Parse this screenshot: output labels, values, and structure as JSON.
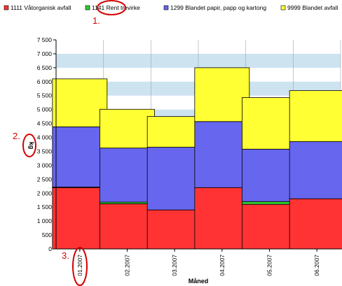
{
  "chart_data": {
    "type": "bar",
    "stacked": true,
    "categories": [
      "01.2007",
      "02.2007",
      "03.2007",
      "04.2007",
      "05.2007",
      "06.2007"
    ],
    "series": [
      {
        "name": "1111 Våtorganisk avfall",
        "color": "#ff3333",
        "values": [
          2200,
          1620,
          1400,
          2200,
          1600,
          1800
        ]
      },
      {
        "name": "1141 Rent trevirke",
        "color": "#33cc33",
        "values": [
          20,
          60,
          0,
          0,
          100,
          0
        ]
      },
      {
        "name": "1299 Blandet papir, papp og kartong",
        "color": "#6666ee",
        "values": [
          2160,
          1940,
          2250,
          2370,
          1880,
          2050
        ]
      },
      {
        "name": "9999 Blandet avfall",
        "color": "#ffff33",
        "values": [
          1720,
          1390,
          1100,
          1930,
          1850,
          1830
        ]
      }
    ],
    "xlabel": "Måned",
    "ylabel": "kg",
    "ylim": [
      0,
      7500
    ],
    "yticks": [
      "0",
      "500",
      "1 000",
      "1 500",
      "2 000",
      "2 500",
      "3 000",
      "3 500",
      "4 000",
      "4 500",
      "5 000",
      "5 500",
      "6 000",
      "6 500",
      "7 000",
      "7 500"
    ],
    "background_bands": [
      "#ffffff",
      "#cde3f0"
    ],
    "legend_position": "top",
    "annotations": [
      "1.",
      "2.",
      "3."
    ],
    "annotation_color": "#d40000"
  }
}
